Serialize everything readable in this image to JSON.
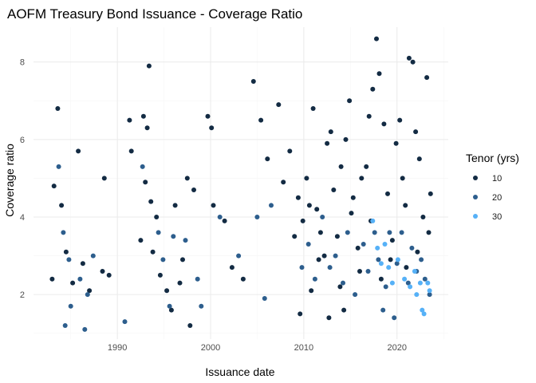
{
  "chart_data": {
    "type": "scatter",
    "title": "AOFM Treasury Bond Issuance - Coverage Ratio",
    "xlabel": "Issuance date",
    "ylabel": "Coverage ratio",
    "xlim": [
      1981,
      2025.5
    ],
    "ylim": [
      0.85,
      8.9
    ],
    "x_ticks": [
      1990,
      2000,
      2010,
      2020
    ],
    "x_tick_labels": [
      "1990",
      "2000",
      "2010",
      "2020"
    ],
    "y_ticks": [
      2,
      4,
      6,
      8
    ],
    "y_tick_labels": [
      "2",
      "4",
      "6",
      "8"
    ],
    "grid": true,
    "legend": {
      "title": "Tenor (yrs)",
      "position": "right",
      "entries": [
        {
          "label": "10",
          "color": "#132B43"
        },
        {
          "label": "20",
          "color": "#2D5E8D"
        },
        {
          "label": "30",
          "color": "#56B1F7"
        }
      ]
    },
    "series": [
      {
        "name": "10",
        "color": "#132B43",
        "points": [
          [
            1983.6,
            6.8
          ],
          [
            1985.8,
            5.7
          ],
          [
            1988.6,
            5.0
          ],
          [
            1983.2,
            4.8
          ],
          [
            1984.0,
            4.3
          ],
          [
            1983.0,
            2.4
          ],
          [
            1984.5,
            3.1
          ],
          [
            1985.2,
            2.3
          ],
          [
            1986.3,
            2.8
          ],
          [
            1987.0,
            2.1
          ],
          [
            1988.4,
            2.6
          ],
          [
            1989.1,
            2.5
          ],
          [
            1991.3,
            6.5
          ],
          [
            1991.5,
            5.7
          ],
          [
            1992.8,
            6.6
          ],
          [
            1993.2,
            6.3
          ],
          [
            1993.4,
            7.9
          ],
          [
            1993.0,
            4.9
          ],
          [
            1993.6,
            4.4
          ],
          [
            1994.2,
            4.0
          ],
          [
            1992.5,
            3.4
          ],
          [
            1993.8,
            3.1
          ],
          [
            1994.6,
            2.5
          ],
          [
            1995.3,
            2.1
          ],
          [
            1996.2,
            4.3
          ],
          [
            1997.5,
            5.0
          ],
          [
            1998.2,
            4.7
          ],
          [
            1997.0,
            2.9
          ],
          [
            1996.7,
            2.3
          ],
          [
            1995.8,
            1.6
          ],
          [
            1997.8,
            1.2
          ],
          [
            1999.7,
            6.6
          ],
          [
            2000.1,
            6.3
          ],
          [
            2000.3,
            4.3
          ],
          [
            2001.5,
            3.9
          ],
          [
            2002.3,
            2.7
          ],
          [
            2003.5,
            2.4
          ],
          [
            2004.6,
            7.5
          ],
          [
            2005.4,
            6.5
          ],
          [
            2006.1,
            5.5
          ],
          [
            2007.3,
            6.9
          ],
          [
            2007.8,
            4.9
          ],
          [
            2008.5,
            5.7
          ],
          [
            2009.0,
            3.5
          ],
          [
            2009.4,
            4.5
          ],
          [
            2009.9,
            3.9
          ],
          [
            2010.3,
            5.0
          ],
          [
            2010.6,
            4.3
          ],
          [
            2011.0,
            6.8
          ],
          [
            2011.4,
            4.2
          ],
          [
            2011.8,
            3.6
          ],
          [
            2012.2,
            3.0
          ],
          [
            2012.5,
            5.9
          ],
          [
            2012.9,
            6.2
          ],
          [
            2013.2,
            4.7
          ],
          [
            2013.6,
            3.5
          ],
          [
            2014.0,
            5.3
          ],
          [
            2014.5,
            6.0
          ],
          [
            2014.9,
            7.0
          ],
          [
            2015.3,
            4.5
          ],
          [
            2015.8,
            3.2
          ],
          [
            2016.2,
            5.0
          ],
          [
            2016.7,
            5.3
          ],
          [
            2017.0,
            6.6
          ],
          [
            2017.4,
            7.3
          ],
          [
            2017.8,
            8.6
          ],
          [
            2018.1,
            7.7
          ],
          [
            2018.6,
            6.4
          ],
          [
            2019.0,
            4.6
          ],
          [
            2019.5,
            3.4
          ],
          [
            2019.9,
            5.9
          ],
          [
            2020.3,
            6.5
          ],
          [
            2020.6,
            5.0
          ],
          [
            2020.9,
            4.3
          ],
          [
            2021.3,
            8.1
          ],
          [
            2021.7,
            8.0
          ],
          [
            2022.0,
            6.2
          ],
          [
            2022.4,
            5.5
          ],
          [
            2022.8,
            4.0
          ],
          [
            2023.2,
            7.6
          ],
          [
            2023.4,
            3.6
          ],
          [
            2023.6,
            4.6
          ],
          [
            2018.3,
            2.4
          ],
          [
            2016.0,
            2.6
          ],
          [
            2014.3,
            1.6
          ],
          [
            2012.7,
            1.4
          ],
          [
            2010.8,
            2.1
          ],
          [
            2009.6,
            1.5
          ],
          [
            2021.0,
            2.7
          ],
          [
            2013.9,
            2.2
          ],
          [
            2011.6,
            2.9
          ],
          [
            2017.2,
            3.9
          ],
          [
            2015.1,
            4.1
          ],
          [
            2019.3,
            2.9
          ],
          [
            2022.2,
            3.1
          ]
        ]
      },
      {
        "name": "20",
        "color": "#2D5E8D",
        "points": [
          [
            1983.7,
            5.3
          ],
          [
            1984.2,
            3.6
          ],
          [
            1984.8,
            2.9
          ],
          [
            1985.0,
            1.7
          ],
          [
            1986.0,
            2.4
          ],
          [
            1986.8,
            2.0
          ],
          [
            1987.4,
            3.0
          ],
          [
            1984.4,
            1.2
          ],
          [
            1986.5,
            1.1
          ],
          [
            1990.8,
            1.3
          ],
          [
            1992.7,
            5.3
          ],
          [
            1994.4,
            3.6
          ],
          [
            1994.9,
            2.9
          ],
          [
            1995.6,
            1.7
          ],
          [
            1997.3,
            3.4
          ],
          [
            1998.6,
            2.4
          ],
          [
            1999.0,
            1.7
          ],
          [
            1996.0,
            3.5
          ],
          [
            2001.0,
            4.0
          ],
          [
            2003.0,
            3.0
          ],
          [
            2005.0,
            4.0
          ],
          [
            2005.8,
            1.9
          ],
          [
            2006.5,
            4.3
          ],
          [
            2009.8,
            2.7
          ],
          [
            2010.5,
            3.3
          ],
          [
            2011.2,
            2.4
          ],
          [
            2012.0,
            4.0
          ],
          [
            2012.8,
            2.7
          ],
          [
            2013.4,
            3.0
          ],
          [
            2014.2,
            2.3
          ],
          [
            2014.7,
            3.6
          ],
          [
            2015.5,
            2.0
          ],
          [
            2016.4,
            3.3
          ],
          [
            2016.9,
            2.6
          ],
          [
            2017.6,
            3.6
          ],
          [
            2018.0,
            2.9
          ],
          [
            2018.8,
            2.2
          ],
          [
            2019.2,
            3.6
          ],
          [
            2019.7,
            1.4
          ],
          [
            2020.0,
            2.8
          ],
          [
            2020.5,
            3.6
          ],
          [
            2021.2,
            2.3
          ],
          [
            2021.6,
            3.2
          ],
          [
            2022.1,
            2.6
          ],
          [
            2022.6,
            2.9
          ],
          [
            2023.0,
            2.4
          ],
          [
            2023.5,
            2.0
          ],
          [
            2018.5,
            1.6
          ]
        ]
      },
      {
        "name": "30",
        "color": "#56B1F7",
        "points": [
          [
            2017.4,
            3.9
          ],
          [
            2017.9,
            3.2
          ],
          [
            2018.3,
            2.8
          ],
          [
            2018.7,
            3.3
          ],
          [
            2019.1,
            2.7
          ],
          [
            2019.5,
            2.3
          ],
          [
            2020.1,
            2.9
          ],
          [
            2020.8,
            2.4
          ],
          [
            2021.4,
            2.2
          ],
          [
            2021.9,
            2.6
          ],
          [
            2022.1,
            2.0
          ],
          [
            2022.5,
            2.3
          ],
          [
            2022.7,
            1.6
          ],
          [
            2022.9,
            1.5
          ],
          [
            2023.3,
            2.3
          ],
          [
            2023.5,
            2.1
          ]
        ]
      }
    ]
  }
}
